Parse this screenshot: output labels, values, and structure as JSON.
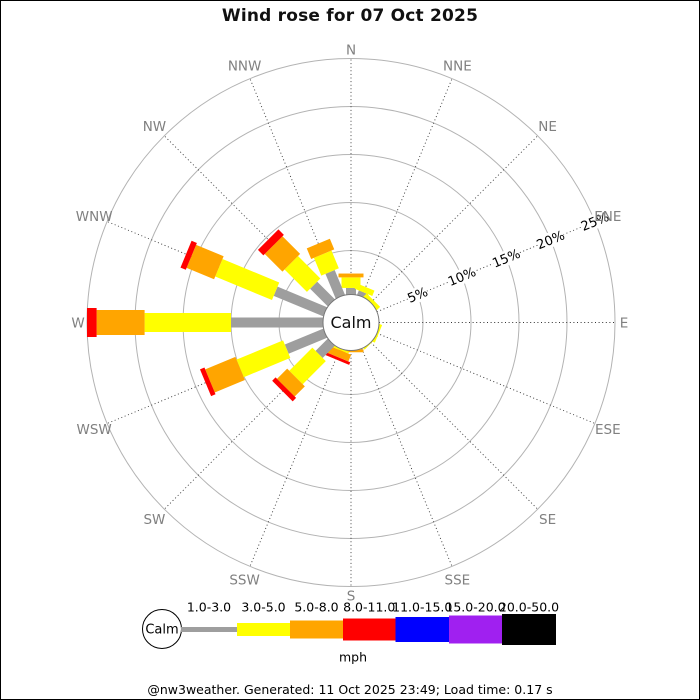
{
  "chart_data": {
    "type": "wind_rose",
    "title": "Wind rose for 07 Oct 2025",
    "units_label": "mph",
    "calm_label": "Calm",
    "ring_labels": [
      "5%",
      "10%",
      "15%",
      "20%",
      "25%"
    ],
    "ring_percents": [
      5,
      10,
      15,
      20,
      25
    ],
    "speed_bins": [
      {
        "label": "1.0-3.0",
        "color": "#9e9e9e"
      },
      {
        "label": "3.0-5.0",
        "color": "#ffff00"
      },
      {
        "label": "5.0-8.0",
        "color": "#ffa500"
      },
      {
        "label": "8.0-11.0",
        "color": "#ff0000"
      },
      {
        "label": "11.0-15.0",
        "color": "#0000ff"
      },
      {
        "label": "15.0-20.0",
        "color": "#a020f0"
      },
      {
        "label": "20.0-50.0",
        "color": "#000000"
      }
    ],
    "directions": [
      {
        "name": "N",
        "angle": 0,
        "values": [
          1.1,
          1.1,
          0.4,
          0,
          0,
          0,
          0
        ]
      },
      {
        "name": "NNE",
        "angle": 22.5,
        "values": [
          0.9,
          0.6,
          0,
          0,
          0,
          0,
          0
        ]
      },
      {
        "name": "NE",
        "angle": 45,
        "values": [
          0.2,
          0.6,
          0,
          0,
          0,
          0,
          0
        ]
      },
      {
        "name": "ENE",
        "angle": 67.5,
        "values": [
          0,
          0,
          0,
          0,
          0,
          0,
          0
        ]
      },
      {
        "name": "E",
        "angle": 90,
        "values": [
          0,
          0,
          0,
          0,
          0,
          0,
          0
        ]
      },
      {
        "name": "ESE",
        "angle": 112.5,
        "values": [
          0.1,
          0.5,
          0,
          0,
          0,
          0,
          0
        ]
      },
      {
        "name": "SE",
        "angle": 135,
        "values": [
          0.1,
          0.4,
          0,
          0,
          0,
          0,
          0
        ]
      },
      {
        "name": "SSE",
        "angle": 157.5,
        "values": [
          0,
          0,
          0,
          0,
          0,
          0,
          0
        ]
      },
      {
        "name": "S",
        "angle": 180,
        "values": [
          0.15,
          0.15,
          0.3,
          0,
          0,
          0,
          0
        ]
      },
      {
        "name": "SSW",
        "angle": 202.5,
        "values": [
          0.4,
          0.2,
          0.75,
          0.3,
          0,
          0,
          0
        ]
      },
      {
        "name": "SW",
        "angle": 225,
        "values": [
          2.2,
          3.4,
          1.5,
          0.5,
          0,
          0,
          0
        ]
      },
      {
        "name": "WSW",
        "angle": 247.5,
        "values": [
          4.75,
          5.25,
          3.4,
          0.5,
          0,
          0,
          0
        ]
      },
      {
        "name": "W",
        "angle": 270,
        "values": [
          10,
          9,
          5,
          1,
          0,
          0,
          0
        ]
      },
      {
        "name": "WNW",
        "angle": 292.5,
        "values": [
          6,
          6.4,
          3.1,
          0.6,
          0,
          0,
          0
        ]
      },
      {
        "name": "NW",
        "angle": 315,
        "values": [
          3,
          3.3,
          2.6,
          0.8,
          0,
          0,
          0
        ]
      },
      {
        "name": "NNW",
        "angle": 337.5,
        "values": [
          3.2,
          2,
          1.2,
          0,
          0,
          0,
          0
        ]
      }
    ],
    "legend_title": "mph"
  },
  "footer": {
    "text": "@nw3weather. Generated: 11 Oct 2025 23:49; Load time: 0.17 s"
  }
}
